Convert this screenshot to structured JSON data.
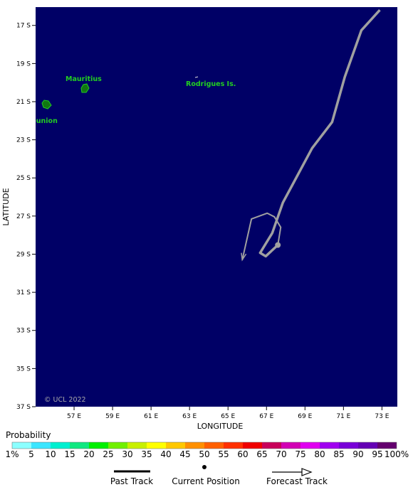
{
  "map": {
    "xlim": [
      55,
      73.8
    ],
    "ylim": [
      -37,
      -16.04
    ],
    "xticks": [
      {
        "value": 57,
        "label": "57 E"
      },
      {
        "value": 59,
        "label": "59 E"
      },
      {
        "value": 61,
        "label": "61 E"
      },
      {
        "value": 63,
        "label": "63 E"
      },
      {
        "value": 65,
        "label": "65 E"
      },
      {
        "value": 67,
        "label": "67 E"
      },
      {
        "value": 69,
        "label": "69 E"
      },
      {
        "value": 71,
        "label": "71 E"
      },
      {
        "value": 73,
        "label": "73 E"
      }
    ],
    "yticks": [
      {
        "value": -17,
        "label": "17 S"
      },
      {
        "value": -19,
        "label": "19 S"
      },
      {
        "value": -21,
        "label": "21 S"
      },
      {
        "value": -23,
        "label": "23 S"
      },
      {
        "value": -25,
        "label": "25 S"
      },
      {
        "value": -27,
        "label": "27 S"
      },
      {
        "value": -29,
        "label": "29 S"
      },
      {
        "value": -31,
        "label": "31 S"
      },
      {
        "value": -33,
        "label": "33 S"
      },
      {
        "value": -35,
        "label": "35 S"
      },
      {
        "value": -37,
        "label": "37 S"
      }
    ],
    "xlabel": "LONGITUDE",
    "ylabel": "LATITUDE",
    "places": [
      "Mauritius",
      "Rodrigues Is.",
      "Reunion"
    ],
    "credit": "© UCL 2022",
    "track_color": "#a0a0a0",
    "past_track": {
      "lon": [
        72.89,
        71.93,
        71.07,
        70.41,
        69.37,
        67.85,
        67.3,
        66.67,
        66.96,
        67.59
      ],
      "lat": [
        -16.19,
        -17.26,
        -19.7,
        -22.07,
        -23.44,
        -26.3,
        -27.89,
        -28.93,
        -29.11,
        -28.52
      ]
    },
    "current_position": {
      "lon": 67.59,
      "lat": -28.52
    },
    "forecast_track": {
      "lon": [
        67.59,
        67.74,
        67.41,
        67.04,
        66.22,
        65.74
      ],
      "lat": [
        -28.52,
        -27.59,
        -27.04,
        -26.85,
        -27.15,
        -29.3
      ]
    }
  },
  "legend": {
    "title": "Probability",
    "labels": [
      "1%",
      "5",
      "10",
      "15",
      "20",
      "25",
      "30",
      "35",
      "40",
      "45",
      "50",
      "55",
      "60",
      "65",
      "70",
      "75",
      "80",
      "85",
      "90",
      "95",
      "100%"
    ],
    "colors": [
      "#8cffff",
      "#3ce6ff",
      "#00f0d0",
      "#10e880",
      "#00f000",
      "#70f000",
      "#c8f000",
      "#ffff00",
      "#ffc800",
      "#ff9000",
      "#ff6000",
      "#ff3000",
      "#f00000",
      "#c8005a",
      "#d200b4",
      "#e000f0",
      "#a000f0",
      "#7800d8",
      "#6400b4",
      "#64006e"
    ],
    "keys": [
      "Past Track",
      "Current Position",
      "Forecast Track"
    ]
  }
}
